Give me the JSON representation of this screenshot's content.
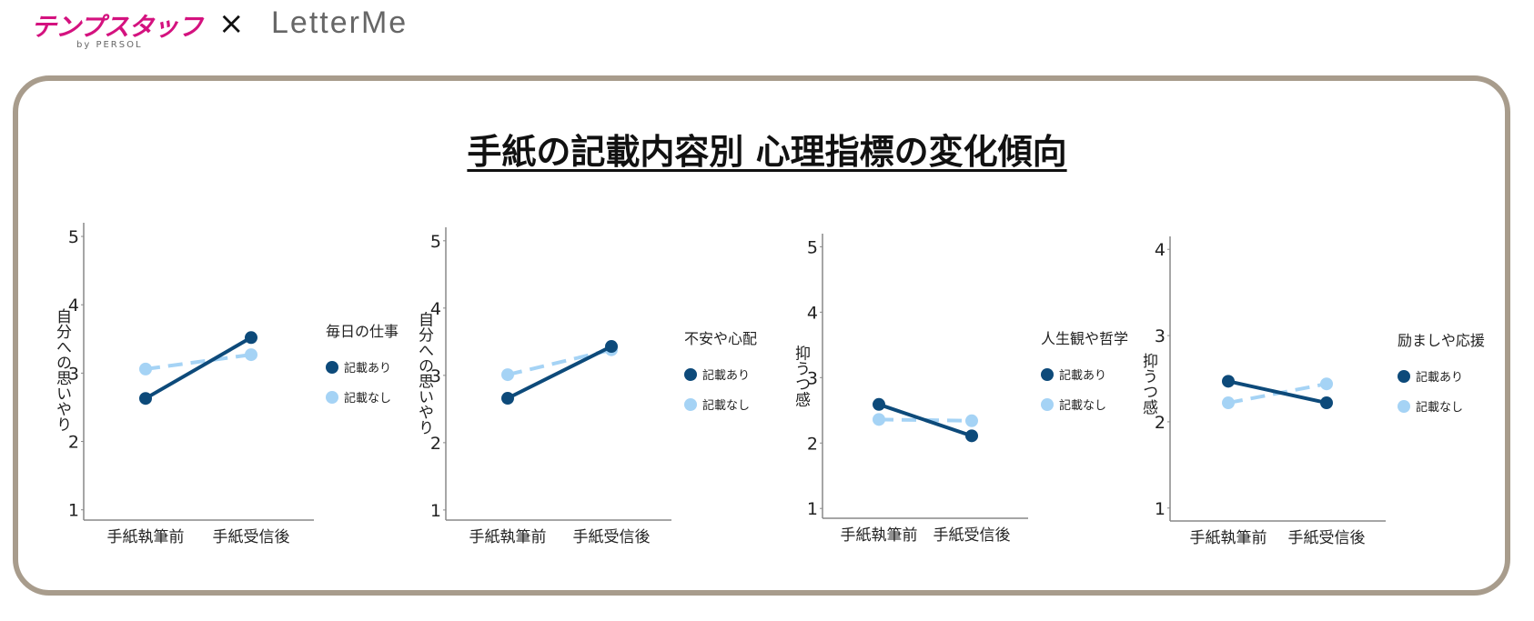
{
  "header": {
    "brand_logo": "テンプスタッフ",
    "brand_sub": "by PERSOL",
    "separator": "×",
    "partner_logo": "LetterMe"
  },
  "title": "手紙の記載内容別 心理指標の変化傾向",
  "colors": {
    "with": "#0d4a7a",
    "without": "#a5d3f5",
    "frame": "#a89c8c",
    "brand": "#d4127f"
  },
  "chart_data": [
    {
      "type": "line",
      "ylabel": "自分への思いやり",
      "categories": [
        "手紙執筆前",
        "手紙受信後"
      ],
      "yticks": [
        1,
        2,
        3,
        4,
        5
      ],
      "ylim": [
        0.85,
        5.2
      ],
      "legend_title": "毎日の仕事",
      "series": [
        {
          "name": "記載あり",
          "values": [
            2.63,
            3.52
          ],
          "style": "solid"
        },
        {
          "name": "記載なし",
          "values": [
            3.06,
            3.27
          ],
          "style": "dashed"
        }
      ]
    },
    {
      "type": "line",
      "ylabel": "自分への思いやり",
      "categories": [
        "手紙執筆前",
        "手紙受信後"
      ],
      "yticks": [
        1,
        2,
        3,
        4,
        5
      ],
      "ylim": [
        0.85,
        5.2
      ],
      "legend_title": "不安や心配",
      "series": [
        {
          "name": "記載あり",
          "values": [
            2.66,
            3.43
          ],
          "style": "solid"
        },
        {
          "name": "記載なし",
          "values": [
            3.01,
            3.38
          ],
          "style": "dashed"
        }
      ]
    },
    {
      "type": "line",
      "ylabel": "抑うつ感",
      "categories": [
        "手紙執筆前",
        "手紙受信後"
      ],
      "yticks": [
        1,
        2,
        3,
        4,
        5
      ],
      "ylim": [
        0.85,
        5.2
      ],
      "legend_title": "人生観や哲学",
      "series": [
        {
          "name": "記載あり",
          "values": [
            2.59,
            2.11
          ],
          "style": "solid"
        },
        {
          "name": "記載なし",
          "values": [
            2.36,
            2.34
          ],
          "style": "dashed"
        }
      ]
    },
    {
      "type": "line",
      "ylabel": "抑うつ感",
      "categories": [
        "手紙執筆前",
        "手紙受信後"
      ],
      "yticks": [
        1,
        2,
        3,
        4
      ],
      "ylim": [
        0.85,
        4.15
      ],
      "legend_title": "励ましや応援",
      "series": [
        {
          "name": "記載あり",
          "values": [
            2.47,
            2.22
          ],
          "style": "solid"
        },
        {
          "name": "記載なし",
          "values": [
            2.22,
            2.44
          ],
          "style": "dashed"
        }
      ]
    }
  ]
}
